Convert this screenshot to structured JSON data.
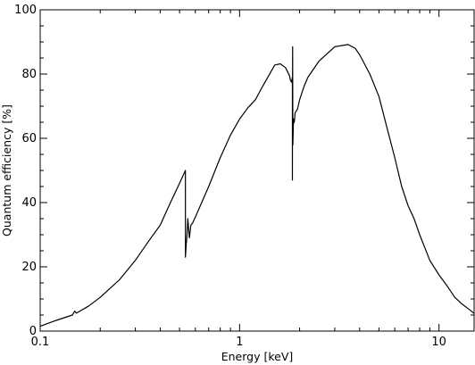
{
  "chart_data": {
    "type": "line",
    "title": "",
    "xlabel": "Energy [keV]",
    "ylabel": "Quantum efficiency [%]",
    "xscale": "log",
    "xlim": [
      0.1,
      15
    ],
    "ylim": [
      0,
      100
    ],
    "grid": false,
    "x_ticks": [
      {
        "value": 0.1,
        "label": "0.1"
      },
      {
        "value": 1,
        "label": "1"
      },
      {
        "value": 10,
        "label": "10"
      }
    ],
    "y_ticks": [
      {
        "value": 0,
        "label": "0"
      },
      {
        "value": 20,
        "label": "20"
      },
      {
        "value": 40,
        "label": "40"
      },
      {
        "value": 60,
        "label": "60"
      },
      {
        "value": 80,
        "label": "80"
      },
      {
        "value": 100,
        "label": "100"
      }
    ],
    "series": [
      {
        "color": "#000000",
        "x": [
          0.1,
          0.12,
          0.145,
          0.149,
          0.152,
          0.175,
          0.2,
          0.25,
          0.3,
          0.35,
          0.4,
          0.45,
          0.5,
          0.535,
          0.535,
          0.54,
          0.545,
          0.55,
          0.56,
          0.57,
          0.58,
          0.6,
          0.7,
          0.8,
          0.9,
          1.0,
          1.1,
          1.2,
          1.3,
          1.4,
          1.5,
          1.6,
          1.7,
          1.78,
          1.8,
          1.82,
          1.84,
          1.84,
          1.845,
          1.85,
          1.86,
          1.87,
          1.88,
          1.9,
          1.95,
          2.0,
          2.05,
          2.1,
          2.2,
          2.5,
          3.0,
          3.5,
          3.8,
          4.0,
          4.5,
          5.0,
          5.5,
          6.0,
          6.5,
          7.0,
          7.5,
          8.0,
          9.0,
          10.0,
          11.0,
          12.0,
          13.0,
          14.0,
          15.0
        ],
        "y": [
          1.5,
          3.3,
          5.0,
          6.2,
          5.6,
          7.8,
          10.5,
          16.0,
          22.0,
          28.0,
          33.0,
          40.0,
          46.0,
          50.0,
          23.0,
          27.0,
          30.0,
          35.0,
          29.0,
          33.0,
          33.5,
          35.5,
          45.0,
          54.0,
          61.0,
          66.0,
          69.5,
          72.0,
          76.0,
          79.5,
          82.8,
          83.2,
          82.0,
          79.5,
          78.0,
          77.5,
          79.0,
          47.0,
          88.5,
          58.0,
          64.0,
          66.0,
          65.0,
          68.0,
          69.0,
          72.0,
          74.0,
          76.0,
          79.0,
          84.0,
          88.5,
          89.2,
          88.0,
          86.0,
          80.0,
          73.0,
          63.0,
          54.0,
          45.0,
          39.0,
          35.0,
          30.0,
          22.0,
          17.5,
          14.0,
          10.5,
          8.5,
          7.0,
          5.5
        ]
      }
    ]
  }
}
